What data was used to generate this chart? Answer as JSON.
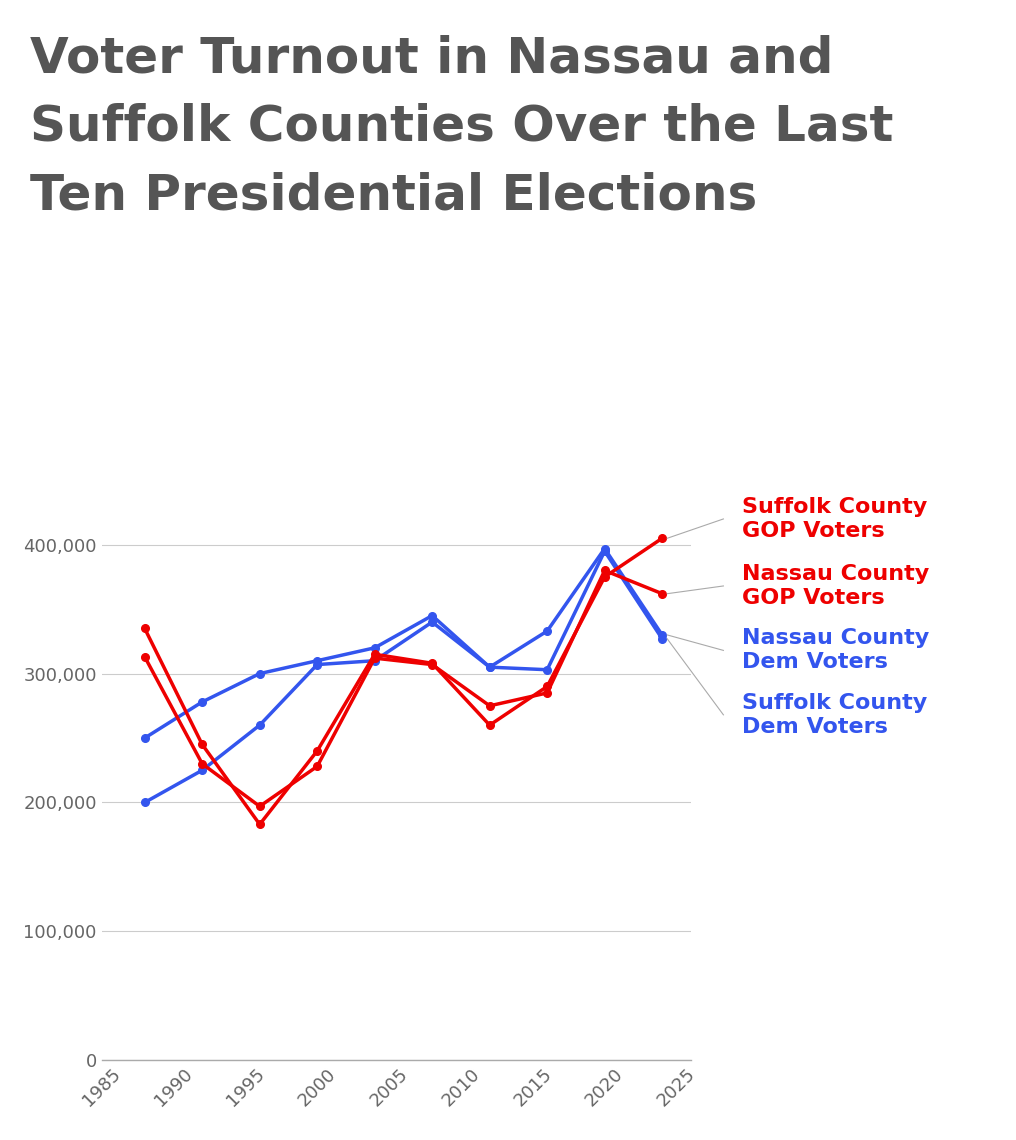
{
  "title_line1": "Voter Turnout in Nassau and",
  "title_line2": "Suffolk Counties Over the Last",
  "title_line3": "Ten Presidential Elections",
  "title_color": "#555555",
  "years": [
    1988,
    1992,
    1996,
    2000,
    2004,
    2008,
    2012,
    2016,
    2020,
    2024
  ],
  "suffolk_gop": [
    335000,
    245000,
    183000,
    240000,
    315000,
    308000,
    260000,
    290000,
    375000,
    405000
  ],
  "nassau_gop": [
    313000,
    230000,
    197000,
    228000,
    312000,
    307000,
    275000,
    285000,
    380000,
    362000
  ],
  "nassau_dem": [
    250000,
    278000,
    300000,
    310000,
    320000,
    345000,
    305000,
    333000,
    397000,
    330000
  ],
  "suffolk_dem": [
    200000,
    225000,
    260000,
    307000,
    310000,
    340000,
    305000,
    303000,
    395000,
    327000
  ],
  "suffolk_gop_color": "#ee0000",
  "nassau_gop_color": "#ee0000",
  "nassau_dem_color": "#3355ee",
  "suffolk_dem_color": "#3355ee",
  "suffolk_gop_label": "Suffolk County\nGOP Voters",
  "nassau_gop_label": "Nassau County\nGOP Voters",
  "nassau_dem_label": "Nassau County\nDem Voters",
  "suffolk_dem_label": "Suffolk County\nDem Voters",
  "xlim": [
    1985,
    2026
  ],
  "ylim": [
    0,
    460000
  ],
  "background_color": "#ffffff",
  "grid_color": "#cccccc"
}
